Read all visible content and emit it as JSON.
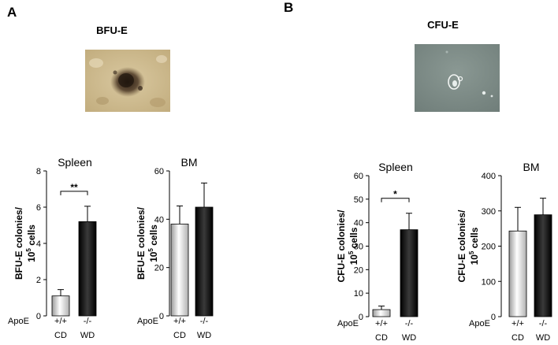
{
  "panels": [
    {
      "letter": "A",
      "assay": "BFU-E"
    },
    {
      "letter": "B",
      "assay": "CFU-E"
    }
  ],
  "colors": {
    "wt_bar": "#e8e8e8",
    "ko_bar": "#1a1a1a"
  },
  "genotype_label": "ApoE",
  "chart_data": [
    {
      "type": "bar",
      "title": "Spleen",
      "ylabel": "BFU-E colonies/\n10^5 cells",
      "ylim": [
        0,
        8
      ],
      "yticks": [
        0,
        2,
        4,
        6,
        8
      ],
      "categories": [
        [
          "+/+",
          "CD"
        ],
        [
          "-/-",
          "WD"
        ]
      ],
      "values": [
        1.1,
        5.2
      ],
      "errors": [
        0.35,
        0.85
      ],
      "significance": "**"
    },
    {
      "type": "bar",
      "title": "BM",
      "ylabel": "BFU-E colonies/\n10^5 cells",
      "ylim": [
        0,
        60
      ],
      "yticks": [
        0,
        20,
        40,
        60
      ],
      "categories": [
        [
          "+/+",
          "CD"
        ],
        [
          "-/-",
          "WD"
        ]
      ],
      "values": [
        38,
        45
      ],
      "errors": [
        7.5,
        10
      ],
      "significance": ""
    },
    {
      "type": "bar",
      "title": "Spleen",
      "ylabel": "CFU-E colonies/\n10^5 cells",
      "ylim": [
        0,
        60
      ],
      "yticks": [
        0,
        10,
        20,
        30,
        40,
        50,
        60
      ],
      "categories": [
        [
          "+/+",
          "CD"
        ],
        [
          "-/-",
          "WD"
        ]
      ],
      "values": [
        3,
        37
      ],
      "errors": [
        1.5,
        7
      ],
      "significance": "*"
    },
    {
      "type": "bar",
      "title": "BM",
      "ylabel": "CFU-E colonies/\n10^5 cells",
      "ylim": [
        0,
        400
      ],
      "yticks": [
        0,
        100,
        200,
        300,
        400
      ],
      "categories": [
        [
          "+/+",
          "CD"
        ],
        [
          "-/-",
          "WD"
        ]
      ],
      "values": [
        243,
        289
      ],
      "errors": [
        67,
        47
      ],
      "significance": ""
    }
  ]
}
